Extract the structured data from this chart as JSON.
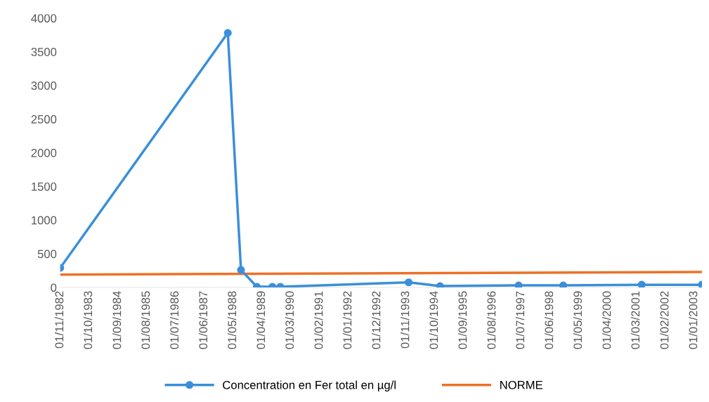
{
  "chart_data": {
    "type": "line",
    "series": [
      {
        "name": "Concentration en Fer total en µg/l",
        "color": "#3b8fd9",
        "marker": "circle",
        "x": [
          "1982-11-01",
          "1988-03-01",
          "1988-08-01",
          "1989-02-01",
          "1989-08-01",
          "1989-11-01",
          "1993-12-01",
          "1994-12-01",
          "1997-06-01",
          "1998-11-01",
          "2001-05-01",
          "2003-04-01"
        ],
        "values": [
          290,
          3780,
          260,
          10,
          10,
          10,
          75,
          20,
          30,
          30,
          40,
          40
        ]
      },
      {
        "name": "NORME",
        "color": "#ed7127",
        "marker": "none",
        "x": [
          "1982-11-01",
          "2003-04-01"
        ],
        "values": [
          190,
          230
        ]
      }
    ],
    "xlim": [
      "1982-11-01",
      "2003-04-01"
    ],
    "xticks": [
      {
        "value": "1982-11-01",
        "label": "01/11/1982"
      },
      {
        "value": "1983-10-01",
        "label": "01/10/1983"
      },
      {
        "value": "1984-09-01",
        "label": "01/09/1984"
      },
      {
        "value": "1985-08-01",
        "label": "01/08/1985"
      },
      {
        "value": "1986-07-01",
        "label": "01/07/1986"
      },
      {
        "value": "1987-06-01",
        "label": "01/06/1987"
      },
      {
        "value": "1988-05-01",
        "label": "01/05/1988"
      },
      {
        "value": "1989-04-01",
        "label": "01/04/1989"
      },
      {
        "value": "1990-03-01",
        "label": "01/03/1990"
      },
      {
        "value": "1991-02-01",
        "label": "01/02/1991"
      },
      {
        "value": "1992-01-01",
        "label": "01/01/1992"
      },
      {
        "value": "1992-12-01",
        "label": "01/12/1992"
      },
      {
        "value": "1993-11-01",
        "label": "01/11/1993"
      },
      {
        "value": "1994-10-01",
        "label": "01/10/1994"
      },
      {
        "value": "1995-09-01",
        "label": "01/09/1995"
      },
      {
        "value": "1996-08-01",
        "label": "01/08/1996"
      },
      {
        "value": "1997-07-01",
        "label": "01/07/1997"
      },
      {
        "value": "1998-06-01",
        "label": "01/06/1998"
      },
      {
        "value": "1999-05-01",
        "label": "01/05/1999"
      },
      {
        "value": "2000-04-01",
        "label": "01/04/2000"
      },
      {
        "value": "2001-03-01",
        "label": "01/03/2001"
      },
      {
        "value": "2002-02-01",
        "label": "01/02/2002"
      },
      {
        "value": "2003-01-01",
        "label": "01/01/2003"
      }
    ],
    "ylim": [
      0,
      4000
    ],
    "yticks": [
      0,
      500,
      1000,
      1500,
      2000,
      2500,
      3000,
      3500,
      4000
    ],
    "grid": false,
    "legend": "bottom"
  }
}
